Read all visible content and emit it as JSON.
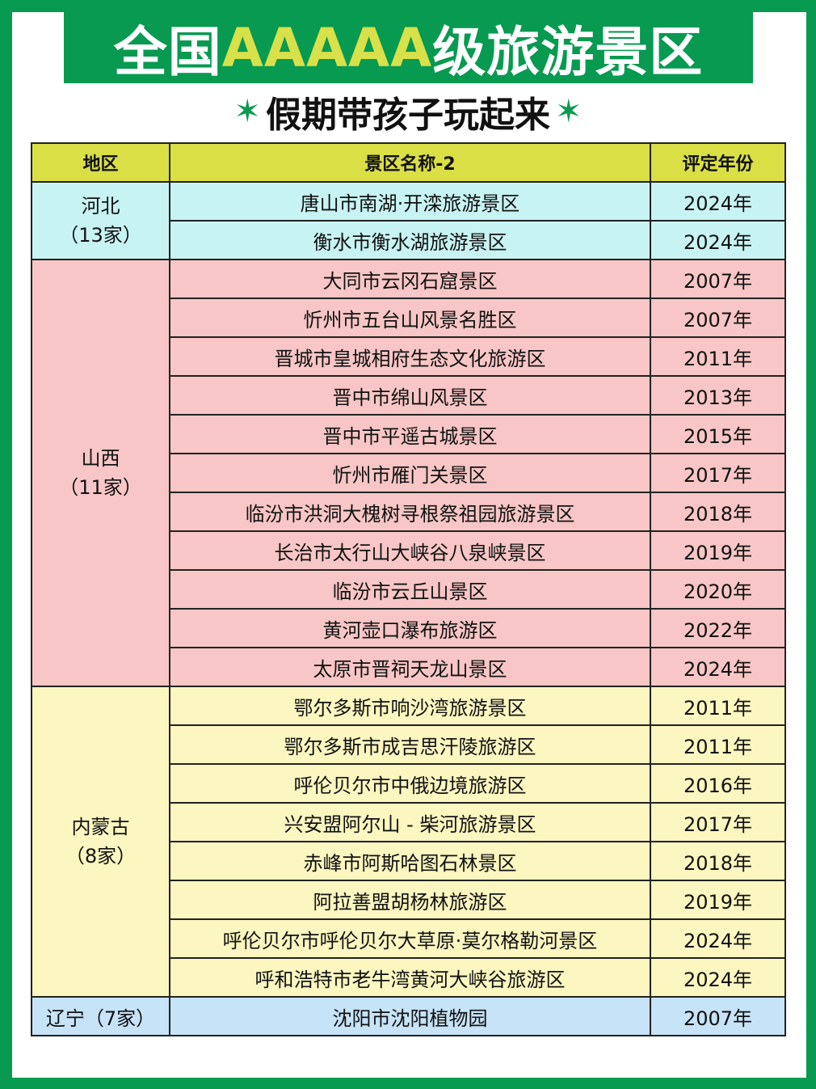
{
  "title": {
    "prefix": "全国",
    "highlight": "AAAAA",
    "suffix": "级旅游景区"
  },
  "subtitle": "假期带孩子玩起来",
  "colors": {
    "background": "#079a50",
    "highlight": "#d8e04a",
    "header": "#d9df45"
  },
  "table": {
    "headers": [
      "地区",
      "景区名称-2",
      "评定年份"
    ],
    "groups": [
      {
        "region": "河北",
        "count": "（13家）",
        "rows": [
          {
            "name": "唐山市南湖·开滦旅游景区",
            "year": "2024年"
          },
          {
            "name": "衡水市衡水湖旅游景区",
            "year": "2024年"
          }
        ]
      },
      {
        "region": "山西",
        "count": "（11家）",
        "rows": [
          {
            "name": "大同市云冈石窟景区",
            "year": "2007年"
          },
          {
            "name": "忻州市五台山风景名胜区",
            "year": "2007年"
          },
          {
            "name": "晋城市皇城相府生态文化旅游区",
            "year": "2011年"
          },
          {
            "name": "晋中市绵山风景区",
            "year": "2013年"
          },
          {
            "name": "晋中市平遥古城景区",
            "year": "2015年"
          },
          {
            "name": "忻州市雁门关景区",
            "year": "2017年"
          },
          {
            "name": "临汾市洪洞大槐树寻根祭祖园旅游景区",
            "year": "2018年"
          },
          {
            "name": "长治市太行山大峡谷八泉峡景区",
            "year": "2019年"
          },
          {
            "name": "临汾市云丘山景区",
            "year": "2020年"
          },
          {
            "name": "黄河壶口瀑布旅游区",
            "year": "2022年"
          },
          {
            "name": "太原市晋祠天龙山景区",
            "year": "2024年"
          }
        ]
      },
      {
        "region": "内蒙古",
        "count": "（8家）",
        "rows": [
          {
            "name": "鄂尔多斯市响沙湾旅游景区",
            "year": "2011年"
          },
          {
            "name": "鄂尔多斯市成吉思汗陵旅游区",
            "year": "2011年"
          },
          {
            "name": "呼伦贝尔市中俄边境旅游区",
            "year": "2016年"
          },
          {
            "name": "兴安盟阿尔山 - 柴河旅游景区",
            "year": "2017年"
          },
          {
            "name": "赤峰市阿斯哈图石林景区",
            "year": "2018年"
          },
          {
            "name": "阿拉善盟胡杨林旅游区",
            "year": "2019年"
          },
          {
            "name": "呼伦贝尔市呼伦贝尔大草原·莫尔格勒河景区",
            "year": "2024年"
          },
          {
            "name": "呼和浩特市老牛湾黄河大峡谷旅游区",
            "year": "2024年"
          }
        ]
      },
      {
        "region": "辽宁",
        "count": "（7家）",
        "rows": [
          {
            "name": "沈阳市沈阳植物园",
            "year": "2007年"
          }
        ]
      }
    ]
  }
}
